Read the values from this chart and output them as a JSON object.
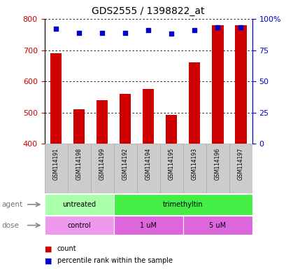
{
  "title": "GDS2555 / 1398822_at",
  "samples": [
    "GSM114191",
    "GSM114198",
    "GSM114199",
    "GSM114192",
    "GSM114194",
    "GSM114195",
    "GSM114193",
    "GSM114196",
    "GSM114197"
  ],
  "counts": [
    690,
    510,
    540,
    560,
    575,
    492,
    660,
    780,
    780
  ],
  "percentiles": [
    92,
    89,
    89,
    89,
    91,
    88,
    91,
    93,
    93
  ],
  "ylim_left": [
    400,
    800
  ],
  "ylim_right": [
    0,
    100
  ],
  "yticks_left": [
    400,
    500,
    600,
    700,
    800
  ],
  "yticks_right": [
    0,
    25,
    50,
    75,
    100
  ],
  "bar_color": "#cc0000",
  "dot_color": "#0000cc",
  "agent_groups": [
    {
      "label": "untreated",
      "start": 0,
      "end": 3,
      "color": "#aaffaa"
    },
    {
      "label": "trimethyltin",
      "start": 3,
      "end": 9,
      "color": "#44ee44"
    }
  ],
  "dose_groups": [
    {
      "label": "control",
      "start": 0,
      "end": 3,
      "color": "#ee99ee"
    },
    {
      "label": "1 uM",
      "start": 3,
      "end": 6,
      "color": "#dd66dd"
    },
    {
      "label": "5 uM",
      "start": 6,
      "end": 9,
      "color": "#dd66dd"
    }
  ],
  "legend_count_label": "count",
  "legend_pct_label": "percentile rank within the sample",
  "agent_label": "agent",
  "dose_label": "dose",
  "label_color_left": "#cc0000",
  "label_color_right": "#0000cc",
  "sample_box_color": "#cccccc",
  "sample_box_edge": "#aaaaaa"
}
